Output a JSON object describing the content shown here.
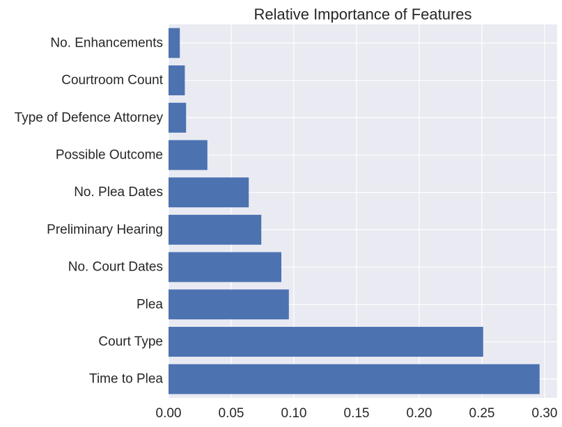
{
  "chart_data": {
    "type": "bar",
    "orientation": "horizontal",
    "title": "Relative Importance of Features",
    "xlabel": "",
    "ylabel": "",
    "categories": [
      "Time to Plea",
      "Court Type",
      "Plea",
      "No. Court Dates",
      "Preliminary Hearing",
      "No. Plea Dates",
      "Possible Outcome",
      "Type of Defence Attorney",
      "Courtroom Count",
      "No. Enhancements"
    ],
    "values": [
      0.296,
      0.251,
      0.096,
      0.09,
      0.074,
      0.064,
      0.031,
      0.014,
      0.013,
      0.009
    ],
    "xlim": [
      0.0,
      0.31
    ],
    "xticks": [
      0.0,
      0.05,
      0.1,
      0.15,
      0.2,
      0.25,
      0.3
    ],
    "xtick_labels": [
      "0.00",
      "0.05",
      "0.10",
      "0.15",
      "0.20",
      "0.25",
      "0.30"
    ],
    "grid": true,
    "colors": {
      "bar": "#4c72b0",
      "plot_background": "#eaeaf2",
      "grid": "#ffffff",
      "text": "#262626"
    }
  }
}
